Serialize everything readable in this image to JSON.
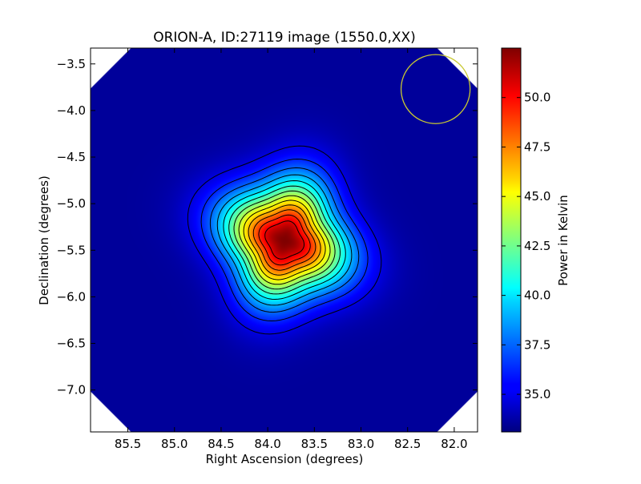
{
  "chart_data": {
    "type": "heatmap",
    "title": "ORION-A, ID:27119 image (1550.0,XX)",
    "xlabel": "Right Ascension (degrees)",
    "ylabel": "Declination (degrees)",
    "xlim": [
      85.9,
      81.75
    ],
    "ylim": [
      -7.45,
      -3.33
    ],
    "x_ticks": [
      "85.5",
      "85.0",
      "84.5",
      "84.0",
      "83.5",
      "83.0",
      "82.5",
      "82.0"
    ],
    "x_tick_values": [
      85.5,
      85.0,
      84.5,
      84.0,
      83.5,
      83.0,
      82.5,
      82.0
    ],
    "y_ticks": [
      "−3.5",
      "−4.0",
      "−4.5",
      "−5.0",
      "−5.5",
      "−6.0",
      "−6.5",
      "−7.0"
    ],
    "y_tick_values": [
      -3.5,
      -4.0,
      -4.5,
      -5.0,
      -5.5,
      -6.0,
      -6.5,
      -7.0
    ],
    "colorbar": {
      "label": "Power in Kelvin",
      "colormap": "jet",
      "range": [
        33.1,
        52.5
      ],
      "ticks": [
        "35.0",
        "37.5",
        "40.0",
        "42.5",
        "45.0",
        "47.5",
        "50.0"
      ],
      "tick_values": [
        35.0,
        37.5,
        40.0,
        42.5,
        45.0,
        47.5,
        50.0
      ]
    },
    "source": {
      "ra": 83.82,
      "dec": -5.39,
      "peak_kelvin": 52.5
    },
    "background_kelvin": 33.6,
    "beam_circle": {
      "ra": 82.2,
      "dec": -3.77,
      "radius_deg": 0.37,
      "color": "#c8c832"
    },
    "contour_count": 13,
    "grid": false
  }
}
